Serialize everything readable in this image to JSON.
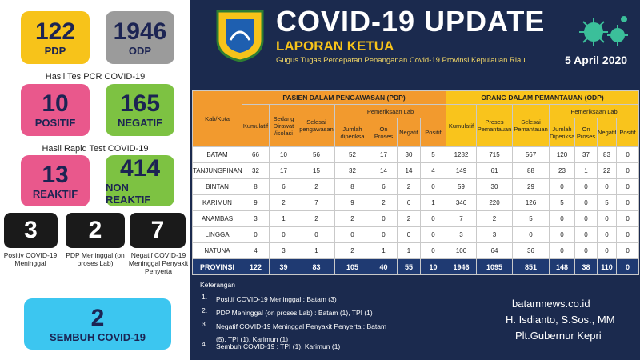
{
  "summary": {
    "pdp": {
      "value": 122,
      "label": "PDP"
    },
    "odp": {
      "value": 1946,
      "label": "ODP"
    }
  },
  "pcr": {
    "title": "Hasil Tes PCR COVID-19",
    "positive": {
      "value": 10,
      "label": "POSITIF"
    },
    "negative": {
      "value": 165,
      "label": "NEGATIF"
    }
  },
  "rapid": {
    "title": "Hasil Rapid Test COVID-19",
    "reactive": {
      "value": 13,
      "label": "REAKTIF"
    },
    "nonreactive": {
      "value": 414,
      "label": "NON REAKTIF"
    }
  },
  "deaths": [
    {
      "value": 3,
      "label": "Positiv COVID-19 Meninggal"
    },
    {
      "value": 2,
      "label": "PDP Meninggal (on proses Lab)"
    },
    {
      "value": 7,
      "label": "Negatif COVID-19 Meninggal Penyakit Penyerta"
    }
  ],
  "recovered": {
    "value": 2,
    "label": "SEMBUH COVID-19"
  },
  "header": {
    "title": "COVID-19 UPDATE",
    "subtitle": "LAPORAN KETUA",
    "caption": "Gugus Tugas Percepatan Penanganan Covid-19 Provinsi Kepulauan Riau",
    "date": "5 April 2020"
  },
  "table": {
    "kab_header": "Kab/Kota",
    "groups": [
      {
        "title": "PASIEN DALAM PENGAWASAN (PDP)",
        "columns": [
          "Kumulatif",
          "Sedang Dirawat /isolasi",
          "Selesai pengawasan"
        ],
        "lab_title": "Pemeriksaan Lab",
        "lab_columns": [
          "Jumlah diperiksa",
          "On Proses",
          "Negatif",
          "Positif"
        ]
      },
      {
        "title": "ORANG DALAM PEMANTAUAN (ODP)",
        "columns": [
          "Kumulatif",
          "Proses Pemantauan",
          "Selesai Pemantauan"
        ],
        "lab_title": "Pemeriksaan Lab",
        "lab_columns": [
          "Jumlah Diperiksa",
          "On Proses",
          "Negatif",
          "Positif"
        ]
      }
    ],
    "rows": [
      [
        "BATAM",
        66,
        10,
        56,
        52,
        17,
        30,
        5,
        1282,
        715,
        567,
        120,
        37,
        83,
        0
      ],
      [
        "TANJUNGPINANG",
        32,
        17,
        15,
        32,
        14,
        14,
        4,
        149,
        61,
        88,
        23,
        1,
        22,
        0
      ],
      [
        "BINTAN",
        8,
        6,
        2,
        8,
        6,
        2,
        0,
        59,
        30,
        29,
        0,
        0,
        0,
        0
      ],
      [
        "KARIMUN",
        9,
        2,
        7,
        9,
        2,
        6,
        1,
        346,
        220,
        126,
        5,
        0,
        5,
        0
      ],
      [
        "ANAMBAS",
        3,
        1,
        2,
        2,
        0,
        2,
        0,
        7,
        2,
        5,
        0,
        0,
        0,
        0
      ],
      [
        "LINGGA",
        0,
        0,
        0,
        0,
        0,
        0,
        0,
        3,
        3,
        0,
        0,
        0,
        0,
        0
      ],
      [
        "NATUNA",
        4,
        3,
        1,
        2,
        1,
        1,
        0,
        100,
        64,
        36,
        0,
        0,
        0,
        0
      ],
      [
        "PROVINSI",
        122,
        39,
        83,
        105,
        40,
        55,
        10,
        1946,
        1095,
        851,
        148,
        38,
        110,
        0
      ]
    ]
  },
  "notes": {
    "title": "Keterangan :",
    "items": [
      {
        "number": "1.",
        "text": "Positif COVID-19 Meninggal : Batam (3)"
      },
      {
        "number": "2.",
        "text": "PDP Meninggal (on proses Lab) : Batam (1), TPI (1)"
      },
      {
        "number": "3.",
        "text": "Negatif COVID-19 Meninggal Penyakit Penyerta : Batam (5), TPI (1), Karimun (1)"
      },
      {
        "number": "4.",
        "text": "Sembuh COVID-19 : TPI (1), Karimun (1)"
      }
    ]
  },
  "footer": {
    "source": "batamnews.co.id",
    "name": "H. Isdianto, S.Sos., MM",
    "position": "Plt.Gubernur Kepri"
  }
}
